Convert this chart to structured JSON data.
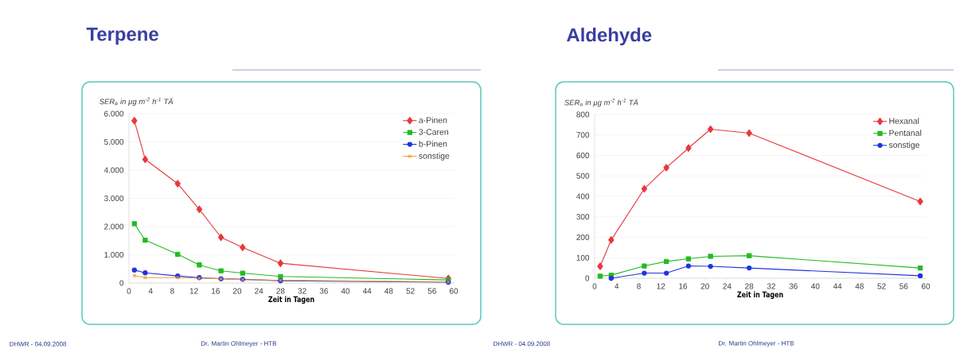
{
  "chart_data": [
    {
      "type": "line",
      "title": "Terpene",
      "ylabel": "SER$_{a}$ in µg m$^{-2}$ h$^{-1}$ TÄ",
      "xlabel": "Zeit in Tagen",
      "x": [
        1,
        3,
        9,
        13,
        17,
        21,
        28,
        59
      ],
      "series": [
        {
          "name": "a-Pinen",
          "color": "#e8383d",
          "marker": "diamond",
          "values": [
            5750,
            4380,
            3520,
            2610,
            1620,
            1260,
            700,
            160
          ]
        },
        {
          "name": "3-Caren",
          "color": "#22bb22",
          "marker": "square",
          "values": [
            2100,
            1520,
            1020,
            640,
            430,
            350,
            230,
            110
          ]
        },
        {
          "name": "b-Pinen",
          "color": "#2233dd",
          "marker": "circle",
          "values": [
            460,
            360,
            250,
            190,
            150,
            130,
            80,
            30
          ]
        },
        {
          "name": "sonstige",
          "color": "#f59a3a",
          "marker": "cross",
          "values": [
            260,
            190,
            190,
            170,
            150,
            120,
            100,
            40
          ]
        }
      ],
      "xlim": [
        0,
        60
      ],
      "xticks": [
        0,
        4,
        8,
        12,
        16,
        20,
        24,
        28,
        32,
        36,
        40,
        44,
        48,
        52,
        56,
        60
      ],
      "ylim": [
        0,
        6000
      ],
      "yticks": [
        0,
        {
          "value": 1000,
          "label": "1.000"
        },
        {
          "value": 2000,
          "label": "2.000"
        },
        {
          "value": 3000,
          "label": "3.000"
        },
        {
          "value": 4000,
          "label": "4.000"
        },
        {
          "value": 5000,
          "label": "5.000"
        },
        {
          "value": 6000,
          "label": "6.000"
        }
      ],
      "grid": "y",
      "legend": "top right",
      "annotations": [
        "DHWR - 04.09.2008",
        "Dr. Martin Ohlmeyer - HTB"
      ]
    },
    {
      "type": "line",
      "title": "Aldehyde",
      "ylabel": "SER$_{a}$ in µg m$^{-2}$ h$^{-1}$ TÄ",
      "xlabel": "Zeit in Tagen",
      "series": [
        {
          "name": "Hexanal",
          "color": "#e8383d",
          "marker": "diamond",
          "x": [
            1,
            3,
            9,
            13,
            17,
            21,
            28,
            59
          ],
          "values": [
            58,
            187,
            437,
            540,
            636,
            728,
            709,
            375
          ]
        },
        {
          "name": "Pentanal",
          "color": "#22bb22",
          "marker": "square",
          "x": [
            1,
            3,
            9,
            13,
            17,
            21,
            28,
            59
          ],
          "values": [
            10,
            15,
            60,
            82,
            95,
            107,
            110,
            50
          ]
        },
        {
          "name": "sonstige",
          "color": "#2233dd",
          "marker": "circle",
          "x": [
            3,
            9,
            13,
            17,
            21,
            28,
            59
          ],
          "values": [
            0,
            25,
            25,
            60,
            58,
            50,
            12
          ]
        }
      ],
      "xlim": [
        0,
        60
      ],
      "xticks": [
        0,
        4,
        8,
        12,
        16,
        20,
        24,
        28,
        32,
        36,
        40,
        44,
        48,
        52,
        56,
        60
      ],
      "ylim": [
        0,
        800
      ],
      "yticks": [
        0,
        100,
        200,
        300,
        400,
        500,
        600,
        700,
        800
      ],
      "grid": "y",
      "legend": "top right",
      "annotations": [
        "DHWR - 04.09.2008",
        "Dr. Martin Ohlmeyer - HTB"
      ]
    }
  ]
}
